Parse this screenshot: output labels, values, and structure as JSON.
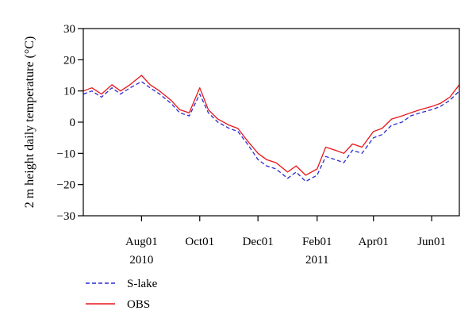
{
  "chart_data": {
    "type": "line",
    "title": "",
    "xlabel": "",
    "ylabel": "2 m height daily temperature (°C)",
    "ylim": [
      -30,
      30
    ],
    "yticks": [
      -30,
      -20,
      -10,
      0,
      10,
      20,
      30
    ],
    "xlim": [
      "2010-06-01",
      "2011-06-30"
    ],
    "xticks": [
      {
        "date": "2010-08-01",
        "label": "Aug01",
        "year": "2010"
      },
      {
        "date": "2010-10-01",
        "label": "Oct01",
        "year": ""
      },
      {
        "date": "2010-12-01",
        "label": "Dec01",
        "year": ""
      },
      {
        "date": "2011-02-01",
        "label": "Feb01",
        "year": "2011"
      },
      {
        "date": "2011-04-01",
        "label": "Apr01",
        "year": ""
      },
      {
        "date": "2011-06-01",
        "label": "Jun01",
        "year": ""
      }
    ],
    "legend_position": "bottom-left",
    "series": [
      {
        "name": "S-lake",
        "color": "#2b2bd0",
        "style": "dashed",
        "x": [
          "2010-06-01",
          "2010-06-10",
          "2010-06-20",
          "2010-07-01",
          "2010-07-10",
          "2010-07-20",
          "2010-08-01",
          "2010-08-10",
          "2010-08-20",
          "2010-09-01",
          "2010-09-10",
          "2010-09-20",
          "2010-10-01",
          "2010-10-10",
          "2010-10-20",
          "2010-11-01",
          "2010-11-10",
          "2010-11-20",
          "2010-12-01",
          "2010-12-10",
          "2010-12-20",
          "2011-01-01",
          "2011-01-10",
          "2011-01-20",
          "2011-02-01",
          "2011-02-10",
          "2011-02-20",
          "2011-03-01",
          "2011-03-10",
          "2011-03-20",
          "2011-04-01",
          "2011-04-10",
          "2011-04-20",
          "2011-05-01",
          "2011-05-10",
          "2011-05-20",
          "2011-06-01",
          "2011-06-10",
          "2011-06-20",
          "2011-06-30"
        ],
        "y": [
          9,
          10,
          8,
          11,
          9,
          11,
          13,
          11,
          9,
          6,
          3,
          2,
          9,
          3,
          0,
          -2,
          -3,
          -7,
          -12,
          -14,
          -15,
          -18,
          -16,
          -19,
          -17,
          -11,
          -12,
          -13,
          -9,
          -10,
          -5,
          -4,
          -1,
          0,
          2,
          3,
          4,
          5,
          7,
          10
        ]
      },
      {
        "name": "OBS",
        "color": "#e8151b",
        "style": "solid",
        "x": [
          "2010-06-01",
          "2010-06-10",
          "2010-06-20",
          "2010-07-01",
          "2010-07-10",
          "2010-07-20",
          "2010-08-01",
          "2010-08-10",
          "2010-08-20",
          "2010-09-01",
          "2010-09-10",
          "2010-09-20",
          "2010-10-01",
          "2010-10-10",
          "2010-10-20",
          "2010-11-01",
          "2010-11-10",
          "2010-11-20",
          "2010-12-01",
          "2010-12-10",
          "2010-12-20",
          "2011-01-01",
          "2011-01-10",
          "2011-01-20",
          "2011-02-01",
          "2011-02-10",
          "2011-02-20",
          "2011-03-01",
          "2011-03-10",
          "2011-03-20",
          "2011-04-01",
          "2011-04-10",
          "2011-04-20",
          "2011-05-01",
          "2011-05-10",
          "2011-05-20",
          "2011-06-01",
          "2011-06-10",
          "2011-06-20",
          "2011-06-30"
        ],
        "y": [
          10,
          11,
          9,
          12,
          10,
          12,
          15,
          12,
          10,
          7,
          4,
          3,
          11,
          4,
          1,
          -1,
          -2,
          -6,
          -10,
          -12,
          -13,
          -16,
          -14,
          -17,
          -15,
          -8,
          -9,
          -10,
          -7,
          -8,
          -3,
          -2,
          1,
          2,
          3,
          4,
          5,
          6,
          8,
          12
        ]
      }
    ]
  }
}
